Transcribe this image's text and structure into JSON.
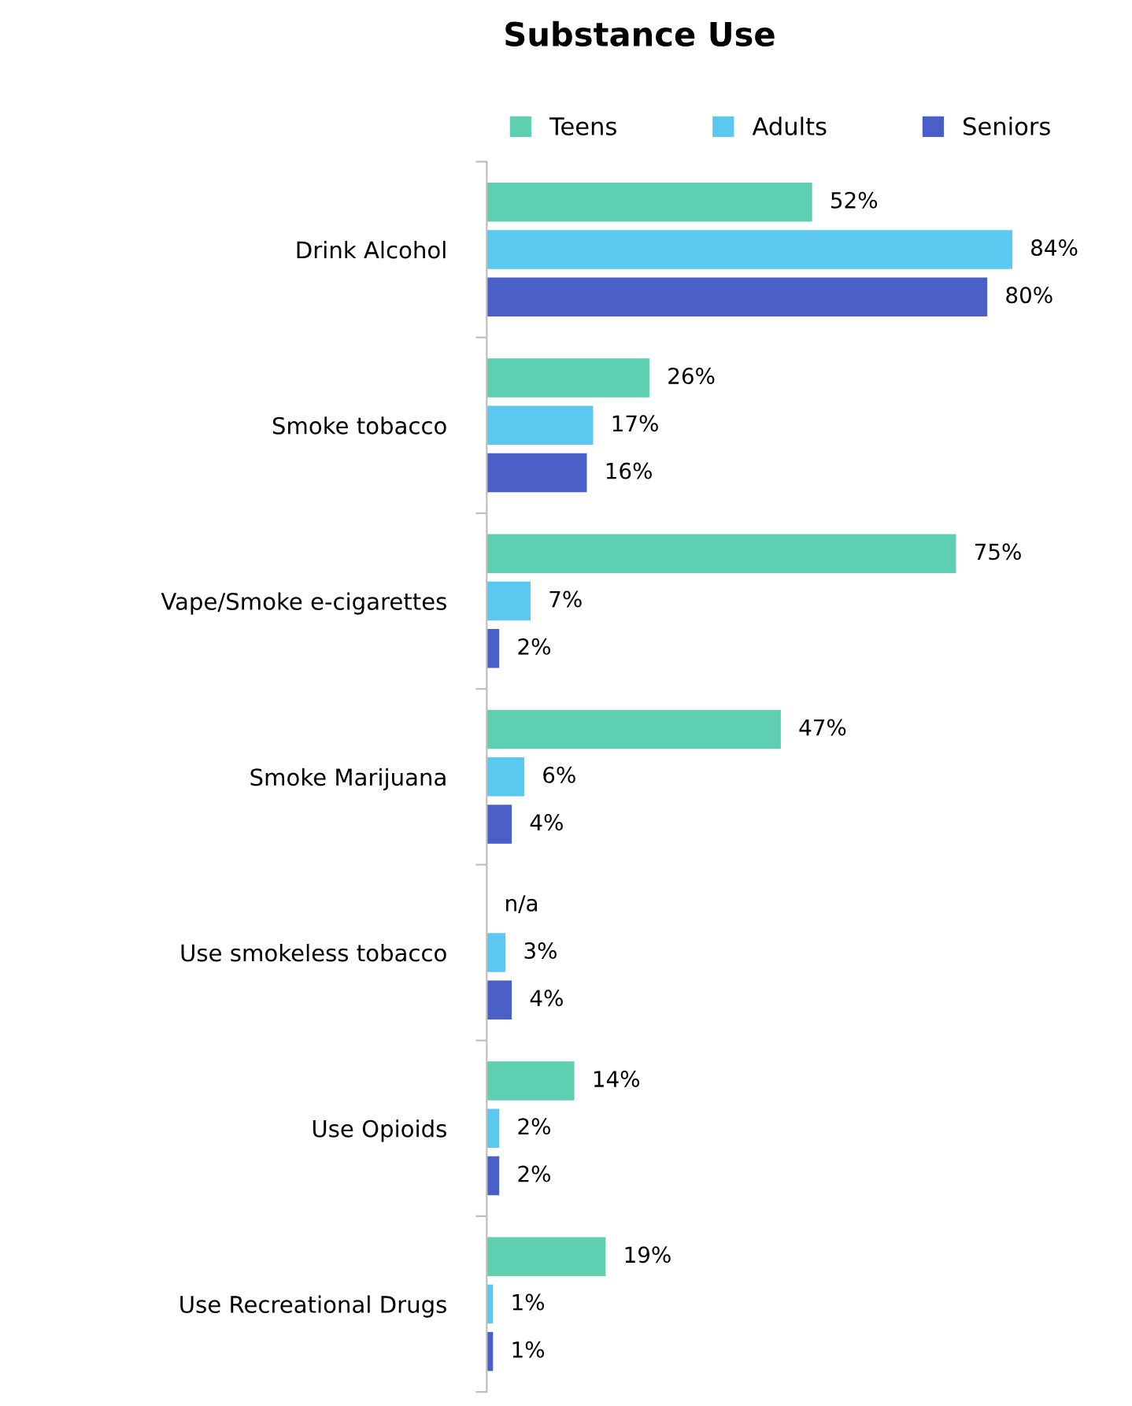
{
  "chart_data": {
    "type": "bar",
    "title": "Substance Use",
    "orientation": "horizontal",
    "categories": [
      "Drink Alcohol",
      "Smoke tobacco",
      "Vape/Smoke e-cigarettes",
      "Smoke Marijuana",
      "Use smokeless tobacco",
      "Use Opioids",
      "Use Recreational Drugs"
    ],
    "series": [
      {
        "name": "Teens",
        "color": "#5ecfb1",
        "values": [
          52,
          26,
          75,
          47,
          null,
          14,
          19
        ],
        "value_labels": [
          "52%",
          "26%",
          "75%",
          "47%",
          "n/a",
          "14%",
          "19%"
        ]
      },
      {
        "name": "Adults",
        "color": "#5bc8f0",
        "values": [
          84,
          17,
          7,
          6,
          3,
          2,
          1
        ],
        "value_labels": [
          "84%",
          "17%",
          "7%",
          "6%",
          "3%",
          "2%",
          "1%"
        ]
      },
      {
        "name": "Seniors",
        "color": "#4b5fc8",
        "values": [
          80,
          16,
          2,
          4,
          4,
          2,
          1
        ],
        "value_labels": [
          "80%",
          "16%",
          "2%",
          "4%",
          "4%",
          "2%",
          "1%"
        ]
      }
    ],
    "legend": "top",
    "grid": false
  }
}
